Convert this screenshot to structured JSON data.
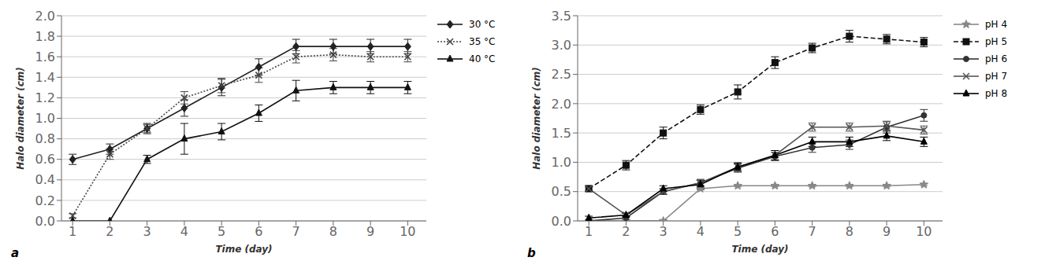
{
  "chart_data": [
    {
      "type": "line",
      "x_label": "Time (day)",
      "y_label": "Halo diameter (cm)",
      "x": [
        1,
        2,
        3,
        4,
        5,
        6,
        7,
        8,
        9,
        10
      ],
      "xlim": [
        0.7,
        10.5
      ],
      "xticks": [
        1,
        2,
        3,
        4,
        5,
        6,
        7,
        8,
        9,
        10
      ],
      "ylim": [
        0,
        2.0
      ],
      "yticks": [
        {
          "value": 0,
          "label": "0.0"
        },
        0.2,
        0.4,
        0.6,
        0.8,
        {
          "value": 1.0,
          "label": "1.0"
        },
        1.2,
        1.4,
        1.6,
        1.8,
        {
          "value": 2.0,
          "label": "2.0"
        }
      ],
      "grid": true,
      "annotations": [
        "a"
      ],
      "series": [
        {
          "name": "30 °C",
          "color": "#222222",
          "marker": "diamond",
          "line_style": "solid",
          "values": [
            0.6,
            0.7,
            0.9,
            1.1,
            1.3,
            1.5,
            1.7,
            1.7,
            1.7,
            1.7
          ],
          "errors": [
            0.05,
            0.05,
            0.05,
            0.08,
            0.08,
            0.08,
            0.07,
            0.07,
            0.07,
            0.07
          ]
        },
        {
          "name": "35 °C",
          "color": "#444444",
          "marker": "x",
          "line_style": "dotted",
          "values": [
            0.05,
            0.65,
            0.9,
            1.2,
            1.32,
            1.42,
            1.6,
            1.62,
            1.6,
            1.6
          ],
          "errors": [
            0.02,
            0.05,
            0.04,
            0.06,
            0.07,
            0.07,
            0.06,
            0.06,
            0.05,
            0.05
          ]
        },
        {
          "name": "40 °C",
          "color": "#111111",
          "marker": "triangle",
          "line_style": "solid",
          "values": [
            0.0,
            0.0,
            0.6,
            0.8,
            0.87,
            1.05,
            1.27,
            1.3,
            1.3,
            1.3
          ],
          "errors": [
            0.0,
            0.0,
            0.04,
            0.15,
            0.08,
            0.08,
            0.1,
            0.06,
            0.06,
            0.06
          ]
        }
      ]
    },
    {
      "type": "line",
      "x_label": "Time (day)",
      "y_label": "Halo diameter (cm)",
      "x": [
        1,
        2,
        3,
        4,
        5,
        6,
        7,
        8,
        9,
        10
      ],
      "xlim": [
        0.7,
        10.5
      ],
      "xticks": [
        1,
        2,
        3,
        4,
        5,
        6,
        7,
        8,
        9,
        10
      ],
      "ylim": [
        0,
        3.5
      ],
      "yticks": [
        {
          "value": 0.0,
          "label": "0.0"
        },
        0.5,
        {
          "value": 1.0,
          "label": "1.0"
        },
        1.5,
        {
          "value": 2.0,
          "label": "2.0"
        },
        2.5,
        {
          "value": 3.0,
          "label": "3.0"
        },
        3.5
      ],
      "grid": true,
      "annotations": [
        "b"
      ],
      "series": [
        {
          "name": "pH 4",
          "color": "#888888",
          "marker": "star",
          "line_style": "solid",
          "values": [
            0.0,
            0.0,
            0.0,
            0.55,
            0.6,
            0.6,
            0.6,
            0.6,
            0.6,
            0.62
          ],
          "errors": [
            0.0,
            0.0,
            0.0,
            0.02,
            0.02,
            0.02,
            0.02,
            0.02,
            0.02,
            0.02
          ]
        },
        {
          "name": "pH 5",
          "color": "#111111",
          "marker": "square",
          "line_style": "dashed",
          "values": [
            0.55,
            0.95,
            1.5,
            1.9,
            2.2,
            2.7,
            2.95,
            3.15,
            3.1,
            3.05
          ],
          "errors": [
            0.05,
            0.08,
            0.1,
            0.08,
            0.12,
            0.1,
            0.08,
            0.1,
            0.08,
            0.08
          ]
        },
        {
          "name": "pH 6",
          "color": "#333333",
          "marker": "circle",
          "line_style": "solid",
          "values": [
            0.0,
            0.05,
            0.5,
            0.65,
            0.9,
            1.1,
            1.25,
            1.3,
            1.6,
            1.8
          ],
          "errors": [
            0.0,
            0.03,
            0.05,
            0.05,
            0.07,
            0.07,
            0.08,
            0.08,
            0.1,
            0.1
          ]
        },
        {
          "name": "pH 7",
          "color": "#555555",
          "marker": "x",
          "line_style": "solid",
          "values": [
            0.55,
            0.1,
            0.5,
            0.65,
            0.92,
            1.12,
            1.6,
            1.6,
            1.62,
            1.55
          ],
          "errors": [
            0.04,
            0.03,
            0.04,
            0.06,
            0.07,
            0.08,
            0.07,
            0.07,
            0.07,
            0.07
          ]
        },
        {
          "name": "pH 8",
          "color": "#000000",
          "marker": "triangle",
          "line_style": "solid",
          "values": [
            0.05,
            0.1,
            0.55,
            0.62,
            0.92,
            1.12,
            1.35,
            1.35,
            1.45,
            1.35
          ],
          "errors": [
            0.03,
            0.03,
            0.05,
            0.07,
            0.07,
            0.08,
            0.08,
            0.08,
            0.08,
            0.08
          ]
        }
      ]
    }
  ]
}
